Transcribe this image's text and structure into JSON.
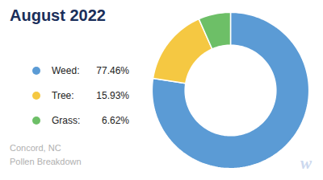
{
  "chart_data": {
    "type": "donut",
    "title": "August 2022",
    "subtitle": "Concord, NC\nPollen Breakdown",
    "categories": [
      "Weed:",
      "Tree:",
      "Grass:"
    ],
    "values": [
      77.46,
      15.93,
      6.62
    ],
    "value_labels": [
      "77.46%",
      "15.93%",
      "6.62%"
    ],
    "colors": [
      "#5b9bd5",
      "#f5c842",
      "#6dbf67"
    ],
    "legend": "left",
    "annotations": [
      "w"
    ]
  }
}
